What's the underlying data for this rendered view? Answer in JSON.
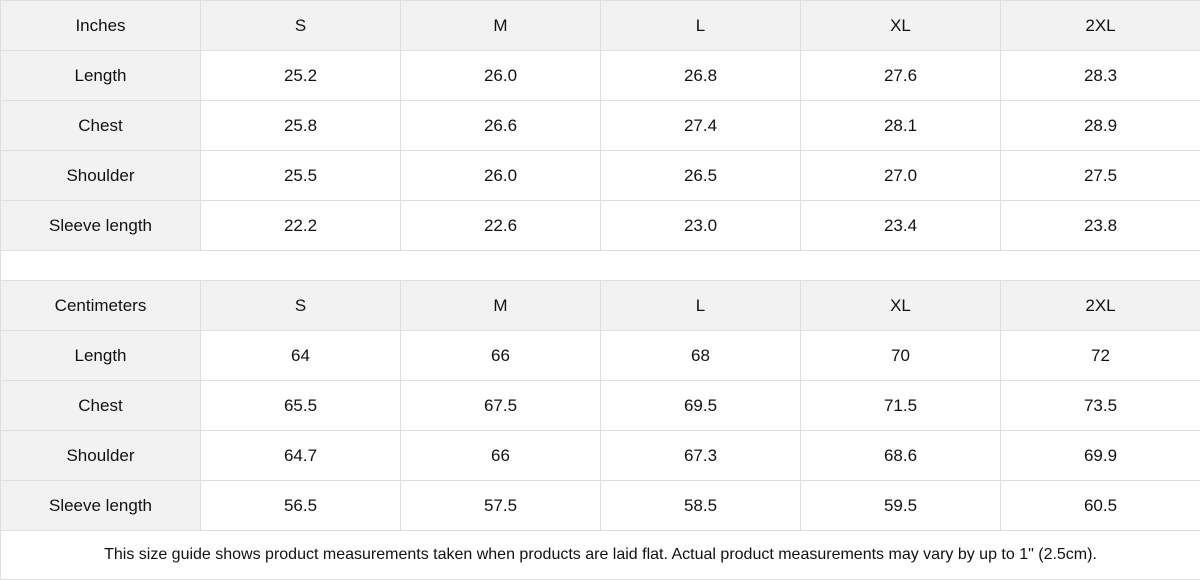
{
  "tables": [
    {
      "unit": "Inches",
      "sizes": [
        "S",
        "M",
        "L",
        "XL",
        "2XL"
      ],
      "rows": [
        {
          "label": "Length",
          "values": [
            "25.2",
            "26.0",
            "26.8",
            "27.6",
            "28.3"
          ]
        },
        {
          "label": "Chest",
          "values": [
            "25.8",
            "26.6",
            "27.4",
            "28.1",
            "28.9"
          ]
        },
        {
          "label": "Shoulder",
          "values": [
            "25.5",
            "26.0",
            "26.5",
            "27.0",
            "27.5"
          ]
        },
        {
          "label": "Sleeve length",
          "values": [
            "22.2",
            "22.6",
            "23.0",
            "23.4",
            "23.8"
          ]
        }
      ]
    },
    {
      "unit": "Centimeters",
      "sizes": [
        "S",
        "M",
        "L",
        "XL",
        "2XL"
      ],
      "rows": [
        {
          "label": "Length",
          "values": [
            "64",
            "66",
            "68",
            "70",
            "72"
          ]
        },
        {
          "label": "Chest",
          "values": [
            "65.5",
            "67.5",
            "69.5",
            "71.5",
            "73.5"
          ]
        },
        {
          "label": "Shoulder",
          "values": [
            "64.7",
            "66",
            "67.3",
            "68.6",
            "69.9"
          ]
        },
        {
          "label": "Sleeve length",
          "values": [
            "56.5",
            "57.5",
            "58.5",
            "59.5",
            "60.5"
          ]
        }
      ]
    }
  ],
  "note": "This size guide shows product measurements taken when products are laid flat.  Actual product measurements may vary by up to 1\" (2.5cm).",
  "colors": {
    "header_bg": "#f2f2f2",
    "border": "#dedede"
  }
}
